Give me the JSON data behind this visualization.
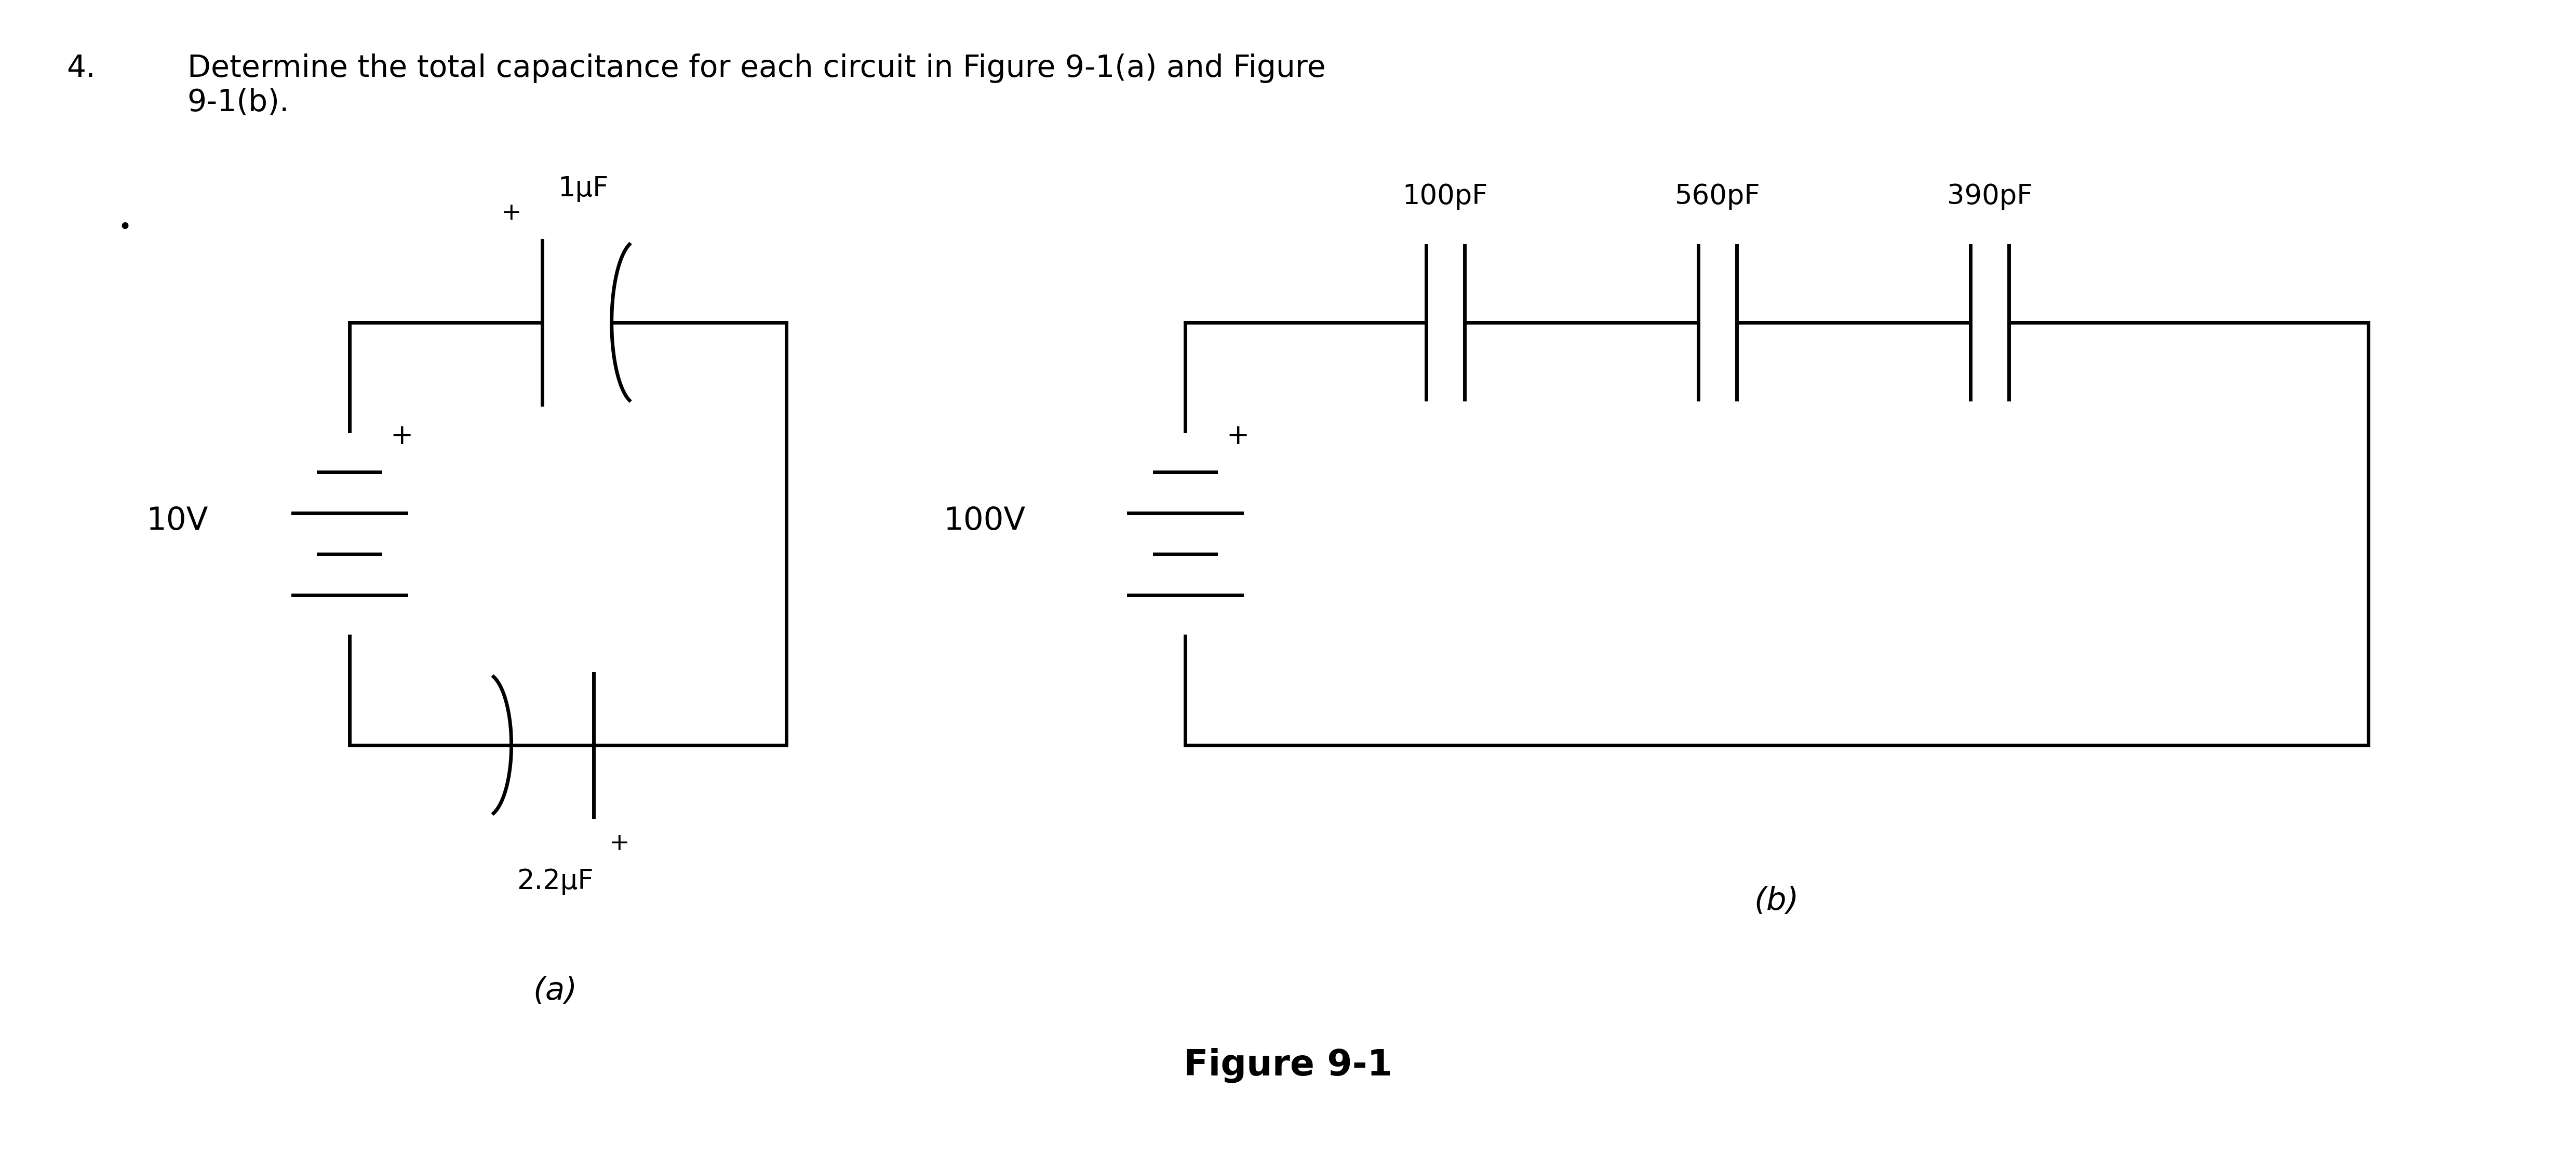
{
  "bg_color": "#ffffff",
  "fig_width": 49.6,
  "fig_height": 22.28,
  "title_number": "4.",
  "title_text": "Determine the total capacitance for each circuit in Figure 9-1(a) and Figure\n9-1(b).",
  "figure_label": "Figure 9-1",
  "circuit_a_label": "(a)",
  "circuit_b_label": "(b)",
  "label_10V": "10V",
  "label_100V": "100V",
  "label_1uF": "1μF",
  "label_2_2uF": "2.2μF",
  "label_100pF": "100pF",
  "label_560pF": "560pF",
  "label_390pF": "390pF",
  "xlim": [
    0,
    10
  ],
  "ylim": [
    0,
    4.5
  ]
}
